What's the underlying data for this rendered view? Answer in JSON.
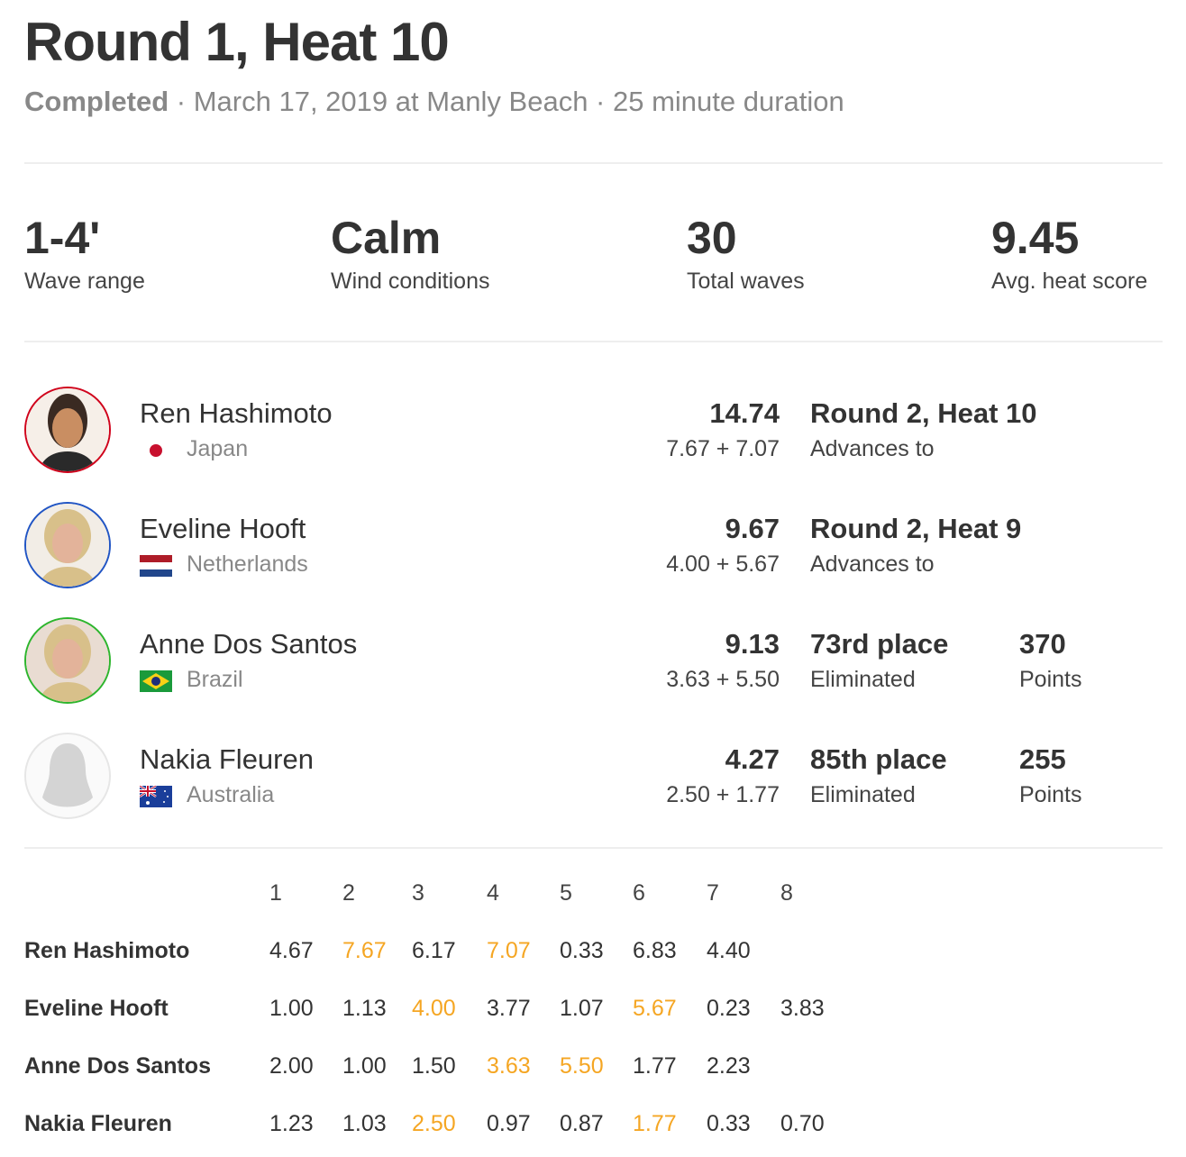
{
  "header": {
    "title": "Round 1, Heat 10",
    "status": "Completed",
    "details": " · March 17, 2019 at Manly Beach · 25 minute duration"
  },
  "stats": [
    {
      "value": "1-4'",
      "label": "Wave range"
    },
    {
      "value": "Calm",
      "label": "Wind conditions"
    },
    {
      "value": "30",
      "label": "Total waves"
    },
    {
      "value": "9.45",
      "label": "Avg. heat score"
    }
  ],
  "surfers": [
    {
      "name": "Ren Hashimoto",
      "country": "Japan",
      "flag": "japan-flag",
      "ring": "#d0021b",
      "score": "14.74",
      "waves": "7.67 + 7.07",
      "result": "Round 2, Heat 10",
      "result_sub": "Advances to",
      "points": "",
      "points_label": ""
    },
    {
      "name": "Eveline Hooft",
      "country": "Netherlands",
      "flag": "netherlands-flag",
      "ring": "#2155c4",
      "score": "9.67",
      "waves": "4.00 + 5.67",
      "result": "Round 2, Heat 9",
      "result_sub": "Advances to",
      "points": "",
      "points_label": ""
    },
    {
      "name": "Anne Dos Santos",
      "country": "Brazil",
      "flag": "brazil-flag",
      "ring": "#2db52d",
      "score": "9.13",
      "waves": "3.63 + 5.50",
      "result": "73rd place",
      "result_sub": "Eliminated",
      "points": "370",
      "points_label": "Points"
    },
    {
      "name": "Nakia Fleuren",
      "country": "Australia",
      "flag": "australia-flag",
      "ring": "#e6e6e6",
      "score": "4.27",
      "waves": "2.50 + 1.77",
      "result": "85th place",
      "result_sub": "Eliminated",
      "points": "255",
      "points_label": "Points"
    }
  ],
  "wave_table": {
    "highlight_color": "#f5a623",
    "columns": [
      "1",
      "2",
      "3",
      "4",
      "5",
      "6",
      "7",
      "8"
    ],
    "rows": [
      {
        "name": "Ren Hashimoto",
        "scores": [
          "4.67",
          "7.67",
          "6.17",
          "7.07",
          "0.33",
          "6.83",
          "4.40"
        ],
        "best": [
          1,
          3
        ]
      },
      {
        "name": "Eveline Hooft",
        "scores": [
          "1.00",
          "1.13",
          "4.00",
          "3.77",
          "1.07",
          "5.67",
          "0.23",
          "3.83"
        ],
        "best": [
          2,
          5
        ]
      },
      {
        "name": "Anne Dos Santos",
        "scores": [
          "2.00",
          "1.00",
          "1.50",
          "3.63",
          "5.50",
          "1.77",
          "2.23"
        ],
        "best": [
          3,
          4
        ]
      },
      {
        "name": "Nakia Fleuren",
        "scores": [
          "1.23",
          "1.03",
          "2.50",
          "0.97",
          "0.87",
          "1.77",
          "0.33",
          "0.70"
        ],
        "best": [
          2,
          5
        ]
      }
    ]
  }
}
